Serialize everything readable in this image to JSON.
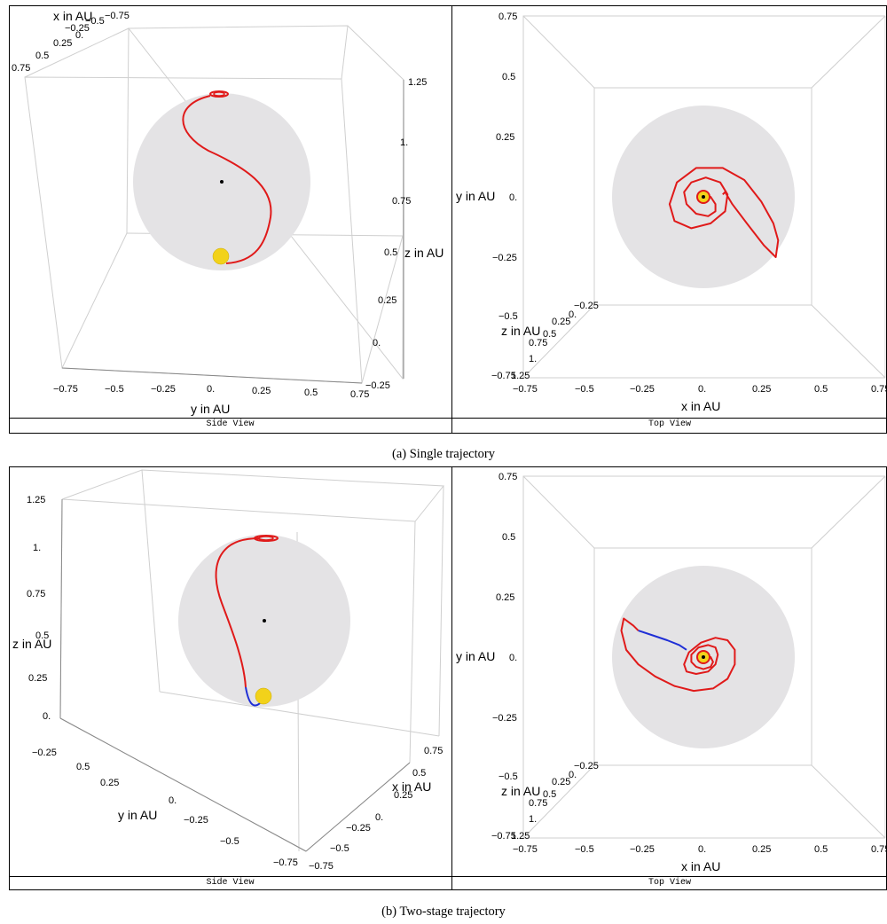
{
  "figures": [
    {
      "caption": "(a) Single trajectory",
      "views": [
        {
          "view_label": "Side View",
          "axes": {
            "x_title": "x in AU",
            "y_title": "y in AU",
            "z_title": "z in AU",
            "x_ticks": [
              "0.75",
              "0.5",
              "0.25",
              "0.",
              "−0.25",
              "−0.5",
              "−0.75"
            ],
            "y_ticks": [
              "−0.75",
              "−0.5",
              "−0.25",
              "0.",
              "0.25",
              "0.5",
              "0.75"
            ],
            "z_ticks": [
              "1.25",
              "1.",
              "0.75",
              "0.5",
              "0.25",
              "0.",
              "−0.25"
            ]
          }
        },
        {
          "view_label": "Top View",
          "axes": {
            "x_title": "x in AU",
            "y_title": "y in AU",
            "z_title": "z in AU",
            "x_ticks": [
              "−0.75",
              "−0.5",
              "−0.25",
              "0.",
              "0.25",
              "0.5",
              "0.75"
            ],
            "y_ticks": [
              "0.75",
              "0.5",
              "0.25",
              "0.",
              "−0.25",
              "−0.5",
              "−0.75"
            ],
            "z_ticks": [
              "−0.25",
              "0.",
              "0.25",
              "0.5",
              "0.75",
              "1.",
              "1.25"
            ]
          }
        }
      ]
    },
    {
      "caption": "(b) Two-stage trajectory",
      "views": [
        {
          "view_label": "Side View",
          "axes": {
            "x_title": "x in AU",
            "y_title": "y in AU",
            "z_title": "z in AU",
            "x_ticks": [
              "0.75",
              "0.5",
              "0.25",
              "0.",
              "−0.25",
              "−0.5",
              "−0.75"
            ],
            "y_ticks": [
              "0.5",
              "0.25",
              "0.",
              "−0.25",
              "−0.5",
              "−0.75"
            ],
            "z_ticks": [
              "1.25",
              "1.",
              "0.75",
              "0.5",
              "0.25",
              "0.",
              "−0.25"
            ]
          }
        },
        {
          "view_label": "Top View",
          "axes": {
            "x_title": "x in AU",
            "y_title": "y in AU",
            "z_title": "z in AU",
            "x_ticks": [
              "−0.75",
              "−0.5",
              "−0.25",
              "0.",
              "0.25",
              "0.5",
              "0.75"
            ],
            "y_ticks": [
              "0.75",
              "0.5",
              "0.25",
              "0.",
              "−0.25",
              "−0.5",
              "−0.75"
            ],
            "z_ticks": [
              "−0.25",
              "0.",
              "0.25",
              "0.5",
              "0.75",
              "1.",
              "1.25"
            ]
          }
        }
      ]
    }
  ],
  "colors": {
    "sphere": "#e4e3e5",
    "trajectory_stage1": "#e01a1a",
    "trajectory_stage2": "#1f2fd6",
    "sun": "#f2d21a",
    "box_edges": "#cfcfcf"
  },
  "chart_data": [
    {
      "type": "scatter",
      "title": "Single trajectory — Side View",
      "xlabel": "y in AU",
      "ylabel": "z in AU",
      "xlim": [
        -0.75,
        0.75
      ],
      "ylim": [
        -0.25,
        1.25
      ],
      "series": [],
      "grid": false
    },
    {
      "type": "line",
      "title": "Single trajectory — Top View",
      "xlabel": "x in AU",
      "ylabel": "y in AU",
      "xlim": [
        -0.75,
        0.75
      ],
      "ylim": [
        -0.75,
        0.75
      ],
      "series": [
        {
          "color": "#e01a1a",
          "x": [
            0.0,
            0.03,
            0.05,
            0.05,
            0.02,
            -0.03,
            -0.07,
            -0.08,
            -0.05,
            0.01,
            0.07,
            0.1,
            0.09,
            0.03,
            -0.05,
            -0.12,
            -0.14,
            -0.11,
            -0.03,
            0.08,
            0.17,
            0.24,
            0.29,
            0.31,
            0.3,
            0.25,
            0.18,
            0.12,
            0.09,
            0.08
          ],
          "y": [
            0.0,
            0.0,
            -0.03,
            -0.06,
            -0.08,
            -0.07,
            -0.03,
            0.02,
            0.06,
            0.08,
            0.06,
            0.01,
            -0.06,
            -0.11,
            -0.13,
            -0.1,
            -0.03,
            0.06,
            0.12,
            0.12,
            0.07,
            -0.02,
            -0.11,
            -0.18,
            -0.25,
            -0.2,
            -0.11,
            -0.03,
            0.02,
            0.01
          ]
        }
      ],
      "grid": false
    },
    {
      "type": "scatter",
      "title": "Two-stage trajectory — Side View",
      "xlabel": "y in AU",
      "ylabel": "z in AU",
      "xlim": [
        -0.75,
        0.75
      ],
      "ylim": [
        -0.25,
        1.25
      ],
      "series": [],
      "grid": false
    },
    {
      "type": "line",
      "title": "Two-stage trajectory — Top View",
      "xlabel": "x in AU",
      "ylabel": "y in AU",
      "xlim": [
        -0.75,
        0.75
      ],
      "ylim": [
        -0.75,
        0.75
      ],
      "series": [
        {
          "color": "#e01a1a",
          "x": [
            0.0,
            0.03,
            0.04,
            0.03,
            0.0,
            -0.03,
            -0.05,
            -0.05,
            -0.02,
            0.02,
            0.05,
            0.06,
            0.05,
            0.02,
            -0.03,
            -0.07,
            -0.08,
            -0.06,
            -0.01,
            0.05,
            0.1,
            0.13,
            0.13,
            0.1,
            0.04,
            -0.04,
            -0.12,
            -0.2,
            -0.27,
            -0.32,
            -0.34,
            -0.33,
            -0.29,
            -0.27
          ],
          "y": [
            0.0,
            0.0,
            -0.02,
            -0.04,
            -0.05,
            -0.04,
            -0.02,
            0.01,
            0.04,
            0.05,
            0.04,
            0.01,
            -0.03,
            -0.06,
            -0.07,
            -0.06,
            -0.03,
            0.02,
            0.06,
            0.08,
            0.07,
            0.03,
            -0.03,
            -0.09,
            -0.13,
            -0.14,
            -0.12,
            -0.08,
            -0.03,
            0.03,
            0.11,
            0.16,
            0.13,
            0.11
          ]
        },
        {
          "color": "#1f2fd6",
          "x": [
            -0.27,
            -0.21,
            -0.15,
            -0.1,
            -0.07
          ],
          "y": [
            0.11,
            0.09,
            0.07,
            0.05,
            0.03
          ]
        }
      ],
      "grid": false
    }
  ]
}
